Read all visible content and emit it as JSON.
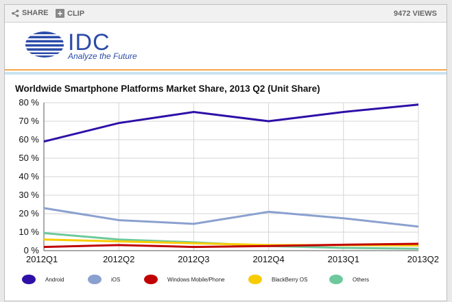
{
  "toolbar": {
    "share_label": "SHARE",
    "clip_label": "CLIP",
    "views": "9472 VIEWS"
  },
  "logo": {
    "name": "IDC",
    "tagline": "Analyze the Future"
  },
  "colors": {
    "android": "#2e0fa8",
    "ios": "#8aa0cf",
    "windows": "#c00000",
    "blackberry": "#f7cc00",
    "others": "#6dc99c"
  },
  "chart_data": {
    "type": "line",
    "title": "Worldwide Smartphone Platforms Market Share, 2013 Q2 (Unit Share)",
    "categories": [
      "2012Q1",
      "2012Q2",
      "2012Q3",
      "2012Q4",
      "2013Q1",
      "2013Q2"
    ],
    "y_ticks": [
      "0 %",
      "10 %",
      "20 %",
      "30 %",
      "40 %",
      "50 %",
      "60 %",
      "70 %",
      "80 %"
    ],
    "ylim": [
      0,
      80
    ],
    "series": [
      {
        "name": "Android",
        "color": "#2e0fa8",
        "values": [
          59,
          69,
          75,
          70,
          75,
          79
        ]
      },
      {
        "name": "iOS",
        "color": "#8aa0cf",
        "values": [
          23,
          16.5,
          14.5,
          21,
          17.5,
          13
        ]
      },
      {
        "name": "Windows Mobile/Phone",
        "color": "#c00000",
        "values": [
          2,
          3,
          2,
          2.5,
          3.2,
          3.7
        ]
      },
      {
        "name": "BlackBerry OS",
        "color": "#f7cc00",
        "values": [
          6,
          5,
          4,
          3,
          3,
          2.8
        ]
      },
      {
        "name": "Others",
        "color": "#6dc99c",
        "values": [
          9.5,
          6,
          4.5,
          2.5,
          1.5,
          1
        ]
      }
    ]
  }
}
